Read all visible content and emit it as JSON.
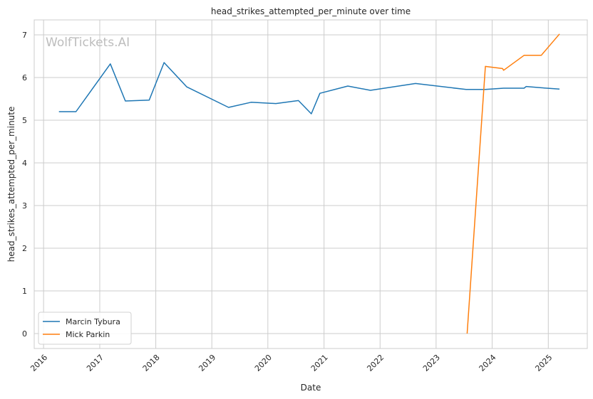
{
  "watermark": "WolfTickets.AI",
  "chart_data": {
    "type": "line",
    "title": "head_strikes_attempted_per_minute over time",
    "xlabel": "Date",
    "ylabel": "head_strikes_attempted_per_minute",
    "x_ticks": [
      "2016",
      "2017",
      "2018",
      "2019",
      "2020",
      "2021",
      "2022",
      "2023",
      "2024",
      "2025"
    ],
    "y_ticks": [
      0,
      1,
      2,
      3,
      4,
      5,
      6,
      7
    ],
    "xlim": [
      "2015-11-01",
      "2025-09-12"
    ],
    "ylim": [
      -0.35,
      7.35
    ],
    "grid": true,
    "legend_position": "lower-left",
    "series": [
      {
        "name": "Marcin Tybura",
        "color": "#1f77b4",
        "points": [
          [
            "2016-04-10",
            5.2
          ],
          [
            "2016-07-30",
            5.2
          ],
          [
            "2017-03-11",
            6.32
          ],
          [
            "2017-06-17",
            5.45
          ],
          [
            "2017-11-19",
            5.47
          ],
          [
            "2018-02-24",
            6.35
          ],
          [
            "2018-07-22",
            5.78
          ],
          [
            "2019-04-20",
            5.3
          ],
          [
            "2019-09-14",
            5.42
          ],
          [
            "2020-02-22",
            5.39
          ],
          [
            "2020-07-18",
            5.46
          ],
          [
            "2020-10-10",
            5.15
          ],
          [
            "2020-12-05",
            5.63
          ],
          [
            "2021-06-05",
            5.8
          ],
          [
            "2021-10-30",
            5.7
          ],
          [
            "2022-08-20",
            5.86
          ],
          [
            "2023-07-15",
            5.72
          ],
          [
            "2023-11-18",
            5.72
          ],
          [
            "2024-03-16",
            5.75
          ],
          [
            "2024-07-27",
            5.75
          ],
          [
            "2024-08-10",
            5.79
          ],
          [
            "2024-11-16",
            5.76
          ],
          [
            "2025-03-15",
            5.73
          ]
        ]
      },
      {
        "name": "Mick Parkin",
        "color": "#ff7f0e",
        "points": [
          [
            "2023-07-22",
            0.0
          ],
          [
            "2023-11-18",
            6.26
          ],
          [
            "2024-03-09",
            6.21
          ],
          [
            "2024-03-16",
            6.17
          ],
          [
            "2024-07-27",
            6.52
          ],
          [
            "2024-11-16",
            6.52
          ],
          [
            "2025-03-15",
            7.02
          ]
        ]
      }
    ]
  }
}
